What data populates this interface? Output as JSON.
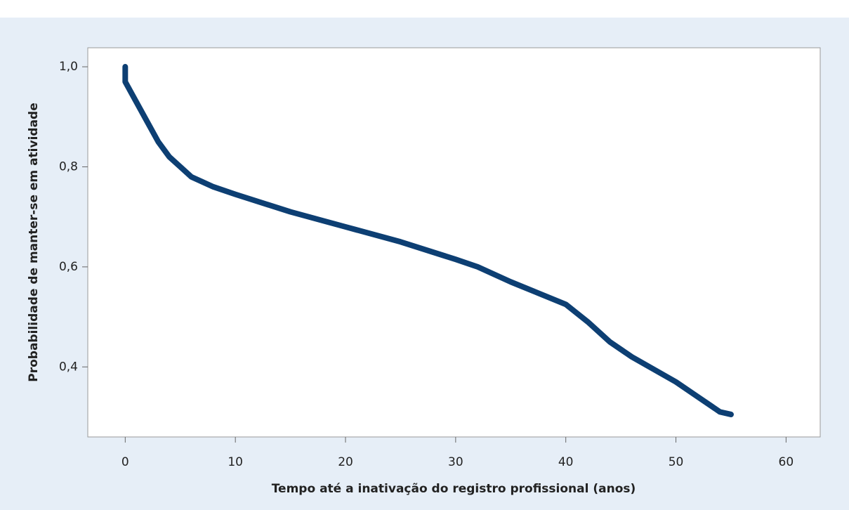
{
  "chart_data": {
    "type": "line",
    "x_label": "Tempo até a inativação do registro profissional (anos)",
    "y_label": "Probabilidade de manter-se em atividade",
    "series": [
      {
        "color": "#0d3f73",
        "x": [
          0,
          0,
          0.5,
          1,
          2,
          3,
          4,
          5,
          6,
          8,
          10,
          15,
          20,
          25,
          30,
          32,
          35,
          40,
          42,
          44,
          46,
          50,
          52,
          54,
          55
        ],
        "values": [
          1.0,
          0.97,
          0.95,
          0.93,
          0.89,
          0.85,
          0.82,
          0.8,
          0.78,
          0.76,
          0.745,
          0.71,
          0.68,
          0.65,
          0.615,
          0.6,
          0.57,
          0.525,
          0.49,
          0.45,
          0.42,
          0.37,
          0.34,
          0.31,
          0.305
        ]
      }
    ],
    "xlim": [
      -3.4,
      63.1
    ],
    "xticks": [
      0,
      10,
      20,
      30,
      40,
      50,
      60
    ],
    "ylim": [
      0.26,
      1.038
    ],
    "yticks": [
      {
        "value": 0.4,
        "label": "0,4"
      },
      {
        "value": 0.6,
        "label": "0,6"
      },
      {
        "value": 0.8,
        "label": "0,8"
      },
      {
        "value": 1.0,
        "label": "1,0"
      }
    ]
  }
}
